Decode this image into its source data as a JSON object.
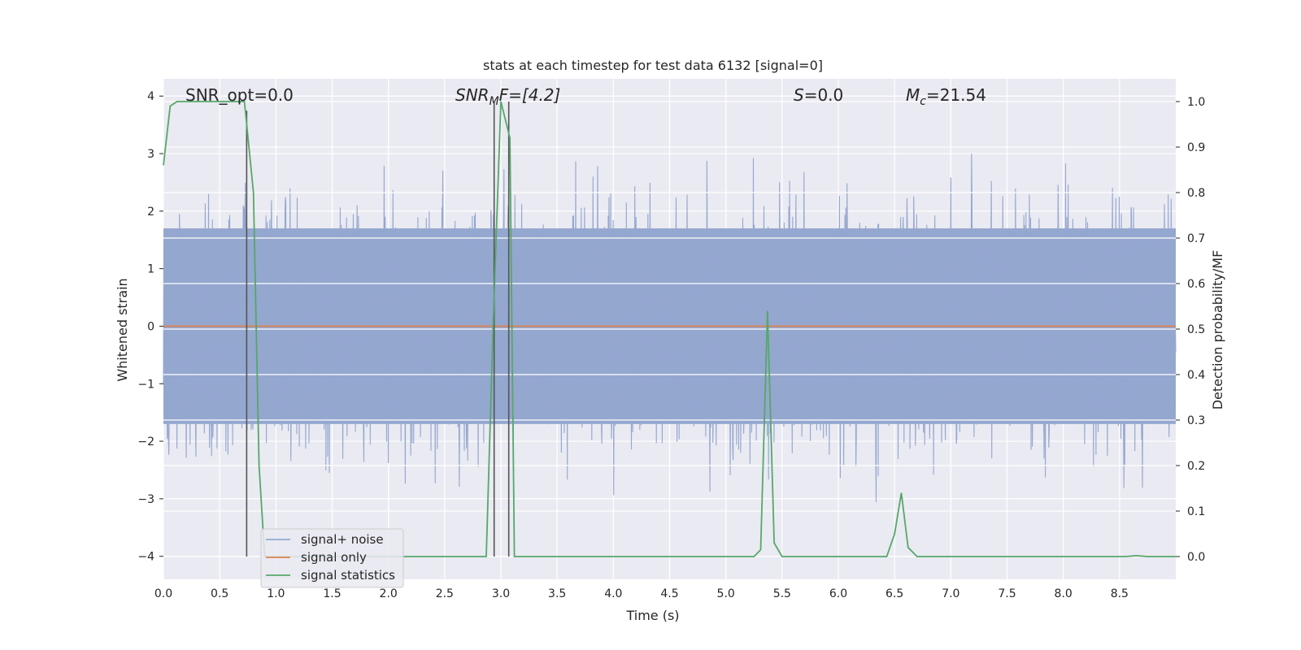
{
  "chart_data": {
    "type": "line",
    "title": "stats at each timestep for test data 6132 [signal=0]",
    "xlabel": "Time (s)",
    "ylabel": "Whitened strain",
    "y2label": "Detection probability/MF",
    "xlim": [
      0.0,
      9.0
    ],
    "ylim": [
      -4.4,
      4.3
    ],
    "y2lim": [
      -0.05,
      1.05
    ],
    "xticks": [
      "0.0",
      "0.5",
      "1.0",
      "1.5",
      "2.0",
      "2.5",
      "3.0",
      "3.5",
      "4.0",
      "4.5",
      "5.0",
      "5.5",
      "6.0",
      "6.5",
      "7.0",
      "7.5",
      "8.0",
      "8.5"
    ],
    "yticks": [
      "4",
      "3",
      "2",
      "1",
      "0",
      "−1",
      "−2",
      "−3",
      "−4"
    ],
    "y2ticks": [
      "1.0",
      "0.9",
      "0.8",
      "0.7",
      "0.6",
      "0.5",
      "0.4",
      "0.3",
      "0.2",
      "0.1",
      "0.0"
    ],
    "annotations": {
      "snr_opt": "SNR_opt=0.0",
      "snr_mf_main": "SNR",
      "snr_mf_sub": "M",
      "snr_mf_rest": "F=[4.2]",
      "s_main": "S",
      "s_rest": "=0.0",
      "mc_main": "M",
      "mc_sub": "c",
      "mc_rest": "=21.54"
    },
    "legend": {
      "placement": "lower left",
      "entries": [
        "signal+ noise",
        "signal only",
        "signal statistics"
      ]
    },
    "colors": {
      "noise": "#94a7cf",
      "signal": "#dd8452",
      "stats": "#55a868",
      "markers": "#555555",
      "plot_bg": "#eaeaf2",
      "grid": "#ffffff"
    },
    "series": [
      {
        "name": "signal statistics",
        "axis": "right",
        "points": [
          [
            0.0,
            0.86
          ],
          [
            0.06,
            0.99
          ],
          [
            0.12,
            1.0
          ],
          [
            0.3,
            1.0
          ],
          [
            0.5,
            1.0
          ],
          [
            0.68,
            1.0
          ],
          [
            0.72,
            1.0
          ],
          [
            0.8,
            0.8
          ],
          [
            0.85,
            0.2
          ],
          [
            0.9,
            0.0
          ],
          [
            1.2,
            0.0
          ],
          [
            2.5,
            0.0
          ],
          [
            2.87,
            0.0
          ],
          [
            2.93,
            0.5
          ],
          [
            3.0,
            1.0
          ],
          [
            3.08,
            0.92
          ],
          [
            3.12,
            0.0
          ],
          [
            3.5,
            0.0
          ],
          [
            5.0,
            0.0
          ],
          [
            5.25,
            0.0
          ],
          [
            5.31,
            0.015
          ],
          [
            5.37,
            0.54
          ],
          [
            5.43,
            0.03
          ],
          [
            5.5,
            0.0
          ],
          [
            6.0,
            0.0
          ],
          [
            6.43,
            0.0
          ],
          [
            6.5,
            0.05
          ],
          [
            6.56,
            0.14
          ],
          [
            6.62,
            0.02
          ],
          [
            6.7,
            0.0
          ],
          [
            8.0,
            0.0
          ],
          [
            8.55,
            0.0
          ],
          [
            8.65,
            0.002
          ],
          [
            8.75,
            0.0
          ],
          [
            9.0,
            0.0
          ]
        ]
      },
      {
        "name": "signal only",
        "axis": "left",
        "points": [
          [
            0.0,
            0.0
          ],
          [
            9.0,
            0.0
          ]
        ]
      },
      {
        "name": "signal+ noise",
        "axis": "left",
        "band": [
          -1.7,
          1.7
        ],
        "noise_amplitude": 3.5
      }
    ],
    "marker_lines": [
      {
        "x": 0.74,
        "y_top": 0.98
      },
      {
        "x": 2.94,
        "y_top": 1.0
      },
      {
        "x": 3.07,
        "y_top": 1.0
      }
    ]
  }
}
